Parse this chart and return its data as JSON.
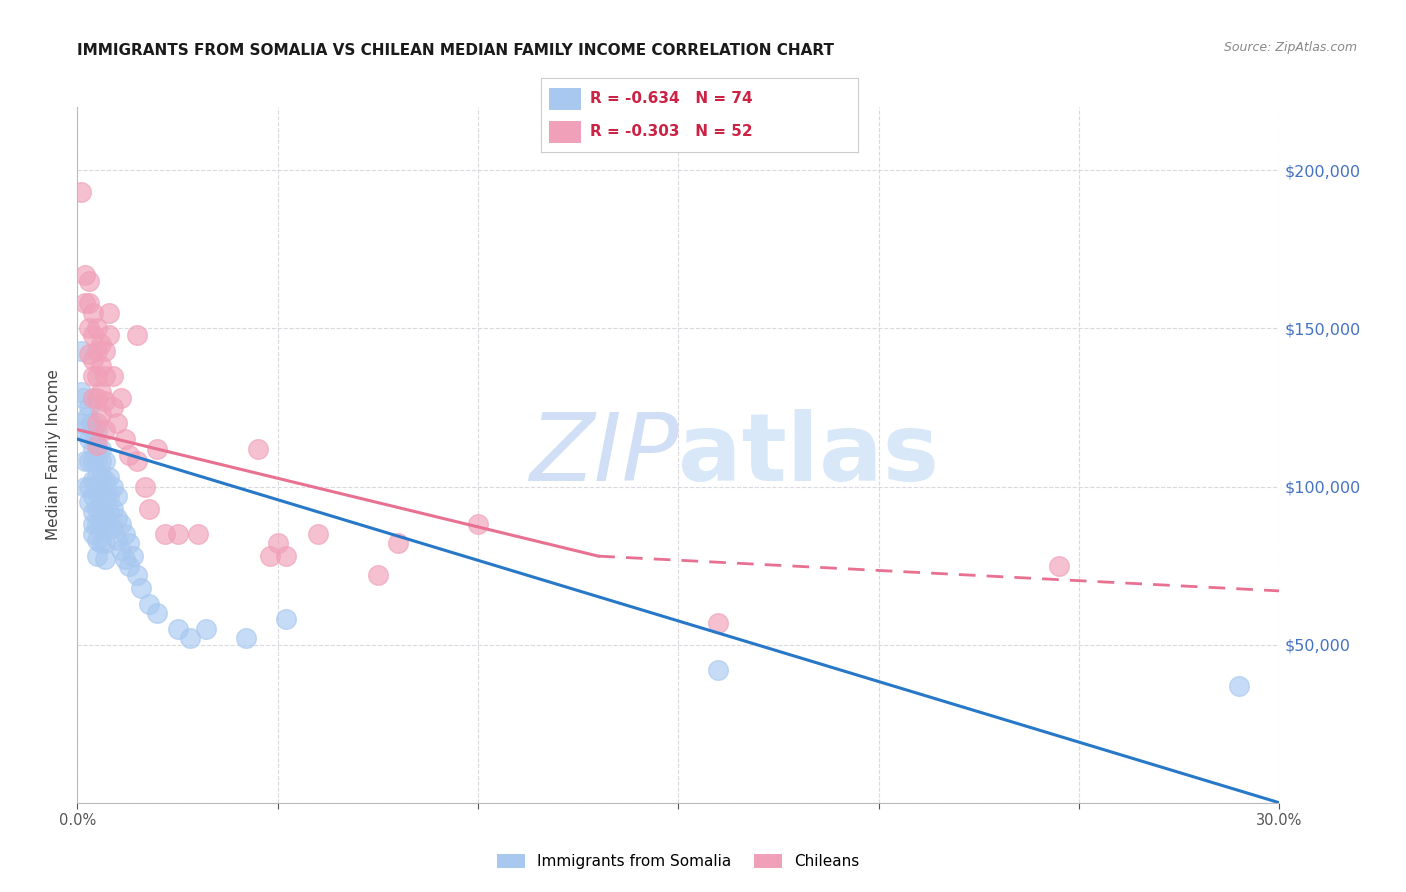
{
  "title": "IMMIGRANTS FROM SOMALIA VS CHILEAN MEDIAN FAMILY INCOME CORRELATION CHART",
  "source": "Source: ZipAtlas.com",
  "ylabel": "Median Family Income",
  "xlim": [
    0.0,
    0.3
  ],
  "ylim": [
    0,
    220000
  ],
  "yticks": [
    0,
    50000,
    100000,
    150000,
    200000
  ],
  "xtick_positions": [
    0.0,
    0.05,
    0.1,
    0.15,
    0.2,
    0.25,
    0.3
  ],
  "watermark": "ZIPatlas",
  "legend_r1": "R = -0.634   N = 74",
  "legend_r2": "R = -0.303   N = 52",
  "somalia_line": {
    "x0": 0.0,
    "y0": 115000,
    "x1": 0.3,
    "y1": 0
  },
  "chilean_line_solid": {
    "x0": 0.0,
    "y0": 118000,
    "x1": 0.13,
    "y1": 78000
  },
  "chilean_line_dash": {
    "x0": 0.13,
    "y0": 78000,
    "x1": 0.3,
    "y1": 67000
  },
  "somalia_scatter": [
    [
      0.0008,
      143000
    ],
    [
      0.001,
      130000
    ],
    [
      0.001,
      120000
    ],
    [
      0.0015,
      128000
    ],
    [
      0.002,
      118000
    ],
    [
      0.002,
      108000
    ],
    [
      0.002,
      100000
    ],
    [
      0.0025,
      122000
    ],
    [
      0.003,
      125000
    ],
    [
      0.003,
      115000
    ],
    [
      0.003,
      108000
    ],
    [
      0.003,
      100000
    ],
    [
      0.003,
      95000
    ],
    [
      0.0035,
      120000
    ],
    [
      0.004,
      118000
    ],
    [
      0.004,
      112000
    ],
    [
      0.004,
      108000
    ],
    [
      0.004,
      102000
    ],
    [
      0.004,
      97000
    ],
    [
      0.004,
      92000
    ],
    [
      0.004,
      88000
    ],
    [
      0.004,
      85000
    ],
    [
      0.0045,
      115000
    ],
    [
      0.005,
      118000
    ],
    [
      0.005,
      112000
    ],
    [
      0.005,
      108000
    ],
    [
      0.005,
      103000
    ],
    [
      0.005,
      98000
    ],
    [
      0.005,
      93000
    ],
    [
      0.005,
      88000
    ],
    [
      0.005,
      83000
    ],
    [
      0.005,
      78000
    ],
    [
      0.006,
      112000
    ],
    [
      0.006,
      108000
    ],
    [
      0.006,
      103000
    ],
    [
      0.006,
      98000
    ],
    [
      0.006,
      93000
    ],
    [
      0.006,
      88000
    ],
    [
      0.006,
      82000
    ],
    [
      0.007,
      108000
    ],
    [
      0.007,
      102000
    ],
    [
      0.007,
      97000
    ],
    [
      0.007,
      92000
    ],
    [
      0.007,
      87000
    ],
    [
      0.007,
      82000
    ],
    [
      0.007,
      77000
    ],
    [
      0.008,
      103000
    ],
    [
      0.008,
      97000
    ],
    [
      0.008,
      92000
    ],
    [
      0.008,
      87000
    ],
    [
      0.009,
      100000
    ],
    [
      0.009,
      93000
    ],
    [
      0.009,
      87000
    ],
    [
      0.01,
      97000
    ],
    [
      0.01,
      90000
    ],
    [
      0.01,
      83000
    ],
    [
      0.011,
      88000
    ],
    [
      0.011,
      80000
    ],
    [
      0.012,
      85000
    ],
    [
      0.012,
      77000
    ],
    [
      0.013,
      82000
    ],
    [
      0.013,
      75000
    ],
    [
      0.014,
      78000
    ],
    [
      0.015,
      72000
    ],
    [
      0.016,
      68000
    ],
    [
      0.018,
      63000
    ],
    [
      0.02,
      60000
    ],
    [
      0.025,
      55000
    ],
    [
      0.028,
      52000
    ],
    [
      0.032,
      55000
    ],
    [
      0.042,
      52000
    ],
    [
      0.052,
      58000
    ],
    [
      0.16,
      42000
    ],
    [
      0.29,
      37000
    ]
  ],
  "chilean_scatter": [
    [
      0.001,
      193000
    ],
    [
      0.002,
      167000
    ],
    [
      0.002,
      158000
    ],
    [
      0.003,
      165000
    ],
    [
      0.003,
      158000
    ],
    [
      0.003,
      150000
    ],
    [
      0.003,
      142000
    ],
    [
      0.004,
      155000
    ],
    [
      0.004,
      148000
    ],
    [
      0.004,
      140000
    ],
    [
      0.004,
      135000
    ],
    [
      0.004,
      128000
    ],
    [
      0.005,
      150000
    ],
    [
      0.005,
      143000
    ],
    [
      0.005,
      135000
    ],
    [
      0.005,
      128000
    ],
    [
      0.005,
      120000
    ],
    [
      0.005,
      113000
    ],
    [
      0.006,
      145000
    ],
    [
      0.006,
      138000
    ],
    [
      0.006,
      130000
    ],
    [
      0.006,
      123000
    ],
    [
      0.007,
      143000
    ],
    [
      0.007,
      135000
    ],
    [
      0.007,
      127000
    ],
    [
      0.007,
      118000
    ],
    [
      0.008,
      155000
    ],
    [
      0.008,
      148000
    ],
    [
      0.009,
      135000
    ],
    [
      0.009,
      125000
    ],
    [
      0.01,
      120000
    ],
    [
      0.011,
      128000
    ],
    [
      0.012,
      115000
    ],
    [
      0.013,
      110000
    ],
    [
      0.015,
      148000
    ],
    [
      0.015,
      108000
    ],
    [
      0.017,
      100000
    ],
    [
      0.018,
      93000
    ],
    [
      0.02,
      112000
    ],
    [
      0.022,
      85000
    ],
    [
      0.025,
      85000
    ],
    [
      0.03,
      85000
    ],
    [
      0.045,
      112000
    ],
    [
      0.048,
      78000
    ],
    [
      0.05,
      82000
    ],
    [
      0.052,
      78000
    ],
    [
      0.06,
      85000
    ],
    [
      0.075,
      72000
    ],
    [
      0.08,
      82000
    ],
    [
      0.1,
      88000
    ],
    [
      0.16,
      57000
    ],
    [
      0.245,
      75000
    ]
  ],
  "somalia_line_color": "#2878c8",
  "chilean_line_color": "#e87090",
  "somalia_scatter_color": "#a8c8f0",
  "chilean_scatter_color": "#f0a0b8",
  "background_color": "#ffffff",
  "grid_color": "#d0d0d8",
  "right_axis_color": "#4472c4",
  "watermark_color": "#d0dff5",
  "legend_text_color": "#cc2244"
}
